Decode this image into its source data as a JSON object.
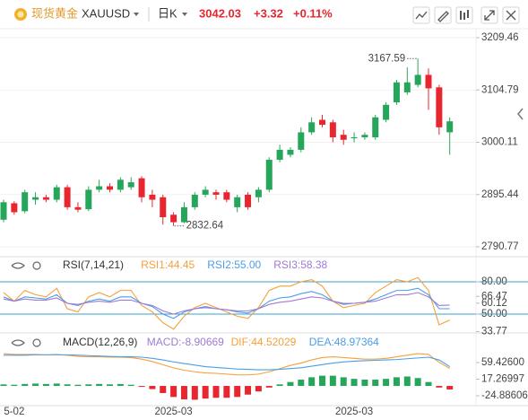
{
  "header": {
    "name": "现货黄金",
    "symbol": "XAUUSD",
    "period": "日K",
    "price": "3042.03",
    "change": "+3.32",
    "change_pct": "+0.11%"
  },
  "chart_data": [
    {
      "type": "candlestick",
      "up_color": "#26a65b",
      "down_color": "#e8262f",
      "grid": true,
      "ylim": [
        2772.8,
        3227.4
      ],
      "yticks": [
        3209.46,
        3104.79,
        3000.11,
        2895.44,
        2790.77
      ],
      "high_label": "3167.59",
      "low_label": "2832.64",
      "open": [
        2845,
        2878,
        2862,
        2885,
        2890,
        2885,
        2910,
        2870,
        2866,
        2905,
        2912,
        2905,
        2910,
        2928,
        2895,
        2890,
        2855,
        2840,
        2870,
        2895,
        2900,
        2900,
        2870,
        2895,
        2890,
        2905,
        2965,
        2975,
        2985,
        3020,
        3045,
        3040,
        3015,
        3008,
        3010,
        3010,
        3045,
        3080,
        3100,
        3115,
        3135,
        3110,
        3020
      ],
      "high": [
        2885,
        2882,
        2905,
        2900,
        2895,
        2915,
        2915,
        2880,
        2912,
        2925,
        2918,
        2930,
        2930,
        2932,
        2905,
        2895,
        2860,
        2880,
        2900,
        2912,
        2905,
        2905,
        2895,
        2900,
        2910,
        2970,
        2995,
        2990,
        3030,
        3050,
        3055,
        3045,
        3025,
        3020,
        3020,
        3055,
        3080,
        3125,
        3150,
        3167.59,
        3148,
        3115,
        3050
      ],
      "low": [
        2840,
        2855,
        2858,
        2875,
        2880,
        2880,
        2865,
        2860,
        2862,
        2900,
        2900,
        2900,
        2905,
        2880,
        2870,
        2835,
        2832.64,
        2838,
        2865,
        2890,
        2885,
        2880,
        2860,
        2865,
        2880,
        2900,
        2960,
        2970,
        2980,
        3015,
        3030,
        3000,
        2995,
        3000,
        3005,
        3005,
        3040,
        3075,
        3095,
        3110,
        3065,
        3015,
        2975
      ],
      "close": [
        2880,
        2860,
        2900,
        2890,
        2885,
        2910,
        2870,
        2865,
        2905,
        2912,
        2905,
        2925,
        2920,
        2890,
        2885,
        2850,
        2840,
        2870,
        2895,
        2905,
        2895,
        2885,
        2890,
        2870,
        2905,
        2965,
        2985,
        2985,
        3020,
        3040,
        3035,
        3010,
        3005,
        3010,
        3015,
        3050,
        3075,
        3120,
        3120,
        3135,
        3108,
        3030,
        3042.03
      ]
    },
    {
      "type": "line",
      "title": "RSI(7,14,21)",
      "ylim": [
        33.3,
        91.7
      ],
      "yticks": [
        {
          "value": 80,
          "label": "80.00",
          "line": true
        },
        {
          "value": 66.47,
          "label": "66.47"
        },
        {
          "value": 60.12,
          "label": "60.12"
        },
        {
          "value": 50,
          "label": "50.00",
          "line": true
        },
        {
          "value": 33.77,
          "label": "33.77"
        }
      ],
      "series": [
        {
          "name": "RSI1:44.45",
          "color": "#f5a03a",
          "values": [
            70,
            62,
            72,
            68,
            66,
            74,
            55,
            52,
            66,
            70,
            66,
            72,
            72,
            58,
            52,
            42,
            36,
            48,
            56,
            60,
            56,
            52,
            48,
            46,
            56,
            72,
            76,
            76,
            80,
            82,
            76,
            62,
            56,
            58,
            60,
            70,
            76,
            82,
            80,
            84,
            72,
            40,
            44.45
          ]
        },
        {
          "name": "RSI2:55.00",
          "color": "#4a9ee8",
          "values": [
            66,
            62,
            66,
            65,
            64,
            68,
            60,
            58,
            62,
            64,
            62,
            66,
            66,
            60,
            57,
            50,
            46,
            52,
            55,
            57,
            55,
            54,
            52,
            51,
            55,
            62,
            65,
            66,
            69,
            71,
            68,
            62,
            59,
            60,
            61,
            64,
            68,
            72,
            72,
            74,
            68,
            55,
            55.0
          ]
        },
        {
          "name": "RSI3:58.38",
          "color": "#a07ad6",
          "values": [
            64,
            62,
            64,
            63,
            63,
            65,
            60,
            59,
            61,
            62,
            61,
            63,
            63,
            60,
            58,
            53,
            50,
            53,
            55,
            56,
            55,
            54,
            53,
            53,
            55,
            59,
            61,
            62,
            64,
            66,
            65,
            62,
            60,
            60,
            61,
            62,
            65,
            68,
            68,
            70,
            66,
            58,
            58.38
          ]
        }
      ]
    },
    {
      "type": "line",
      "title": "MACD(12,26,9)",
      "ylim": [
        -50,
        114
      ],
      "yticks": [
        {
          "value": 59.426,
          "label": "59.42600"
        },
        17.26997,
        {
          "value": -24.88606,
          "label": "-24.88606"
        }
      ],
      "categories": [
        null,
        "5-02",
        null,
        null,
        null,
        null,
        null,
        null,
        null,
        null,
        null,
        null,
        null,
        null,
        null,
        null,
        "2025-03",
        null,
        null,
        null,
        null,
        null,
        null,
        null,
        null,
        null,
        null,
        null,
        null,
        null,
        null,
        null,
        null,
        "2025-03",
        null,
        null,
        null,
        null,
        null,
        null,
        null,
        null,
        null
      ],
      "series": [
        {
          "name": "MACD:-8.90669",
          "style": "bar",
          "color": "#a07ad6",
          "up_color": "#26a65b",
          "down_color": "#e8262f",
          "values": [
            4,
            3,
            5,
            6,
            5,
            6,
            4,
            3,
            4,
            5,
            4,
            5,
            3,
            -2,
            -8,
            -18,
            -28,
            -34,
            -35,
            -32,
            -30,
            -30,
            -28,
            -22,
            -14,
            -4,
            4,
            10,
            16,
            22,
            26,
            26,
            22,
            18,
            16,
            16,
            18,
            22,
            24,
            20,
            10,
            -4,
            -8.90669
          ]
        },
        {
          "name": "DIF:44.52029",
          "color": "#f5a03a",
          "values": [
            82,
            80,
            80,
            80,
            79,
            80,
            78,
            75,
            74,
            74,
            73,
            73,
            72,
            68,
            62,
            54,
            46,
            40,
            36,
            33,
            32,
            30,
            28,
            28,
            30,
            36,
            44,
            52,
            58,
            66,
            72,
            74,
            72,
            70,
            68,
            68,
            70,
            74,
            78,
            82,
            80,
            60,
            44.52029
          ]
        },
        {
          "name": "DEA:48.97364",
          "color": "#4a9ee8",
          "values": [
            78,
            78,
            78,
            79,
            79,
            79,
            79,
            78,
            77,
            76,
            75,
            74,
            74,
            73,
            70,
            66,
            61,
            57,
            53,
            49,
            47,
            45,
            43,
            42,
            41,
            41,
            42,
            44,
            46,
            50,
            54,
            58,
            61,
            63,
            64,
            65,
            66,
            67,
            69,
            71,
            73,
            66,
            48.97364
          ]
        }
      ]
    }
  ]
}
